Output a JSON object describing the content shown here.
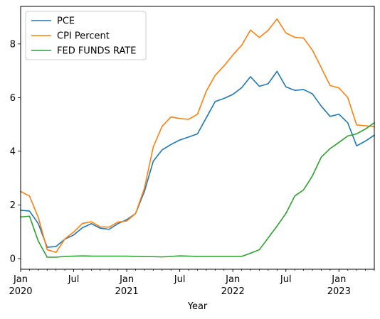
{
  "chart_data": {
    "type": "line",
    "title": "",
    "xlabel": "Year",
    "ylabel": "",
    "x": [
      "2020-01",
      "2020-02",
      "2020-03",
      "2020-04",
      "2020-05",
      "2020-06",
      "2020-07",
      "2020-08",
      "2020-09",
      "2020-10",
      "2020-11",
      "2020-12",
      "2021-01",
      "2021-02",
      "2021-03",
      "2021-04",
      "2021-05",
      "2021-06",
      "2021-07",
      "2021-08",
      "2021-09",
      "2021-10",
      "2021-11",
      "2021-12",
      "2022-01",
      "2022-02",
      "2022-03",
      "2022-04",
      "2022-05",
      "2022-06",
      "2022-07",
      "2022-08",
      "2022-09",
      "2022-10",
      "2022-11",
      "2022-12",
      "2023-01",
      "2023-02",
      "2023-03",
      "2023-04",
      "2023-05"
    ],
    "xlim": [
      "2020-01",
      "2023-05"
    ],
    "ylim": [
      -0.4,
      9.4
    ],
    "grid": false,
    "legend_position": "top-left",
    "x_ticks": [
      {
        "at": "2020-01",
        "label": "Jan",
        "sub": "2020"
      },
      {
        "at": "2020-07",
        "label": "Jul",
        "sub": ""
      },
      {
        "at": "2021-01",
        "label": "Jan",
        "sub": "2021"
      },
      {
        "at": "2021-07",
        "label": "Jul",
        "sub": ""
      },
      {
        "at": "2022-01",
        "label": "Jan",
        "sub": "2022"
      },
      {
        "at": "2022-07",
        "label": "Jul",
        "sub": ""
      },
      {
        "at": "2023-01",
        "label": "Jan",
        "sub": "2023"
      }
    ],
    "y_ticks": [
      0,
      2,
      4,
      6,
      8
    ],
    "series": [
      {
        "name": "PCE",
        "color": "#1f77b4",
        "values": [
          1.8,
          1.77,
          1.3,
          0.42,
          0.45,
          0.72,
          0.88,
          1.15,
          1.3,
          1.13,
          1.09,
          1.3,
          1.45,
          1.68,
          2.5,
          3.63,
          4.05,
          4.25,
          4.42,
          4.53,
          4.65,
          5.25,
          5.85,
          5.97,
          6.12,
          6.37,
          6.78,
          6.42,
          6.52,
          6.98,
          6.4,
          6.27,
          6.3,
          6.14,
          5.68,
          5.3,
          5.38,
          5.06,
          4.2,
          4.38,
          4.6
        ]
      },
      {
        "name": "CPI Percent",
        "color": "#ff7f0e",
        "values": [
          2.5,
          2.33,
          1.53,
          0.33,
          0.23,
          0.73,
          0.99,
          1.31,
          1.37,
          1.18,
          1.17,
          1.36,
          1.4,
          1.68,
          2.62,
          4.16,
          4.93,
          5.28,
          5.22,
          5.19,
          5.38,
          6.24,
          6.83,
          7.18,
          7.59,
          7.95,
          8.52,
          8.24,
          8.51,
          8.93,
          8.41,
          8.25,
          8.22,
          7.77,
          7.12,
          6.45,
          6.36,
          6.0,
          4.98,
          4.95,
          4.92
        ]
      },
      {
        "name": "FED FUNDS RATE",
        "color": "#2ca02c",
        "values": [
          1.55,
          1.58,
          0.65,
          0.05,
          0.05,
          0.08,
          0.09,
          0.1,
          0.09,
          0.09,
          0.09,
          0.09,
          0.09,
          0.08,
          0.07,
          0.07,
          0.06,
          0.08,
          0.1,
          0.09,
          0.08,
          0.08,
          0.08,
          0.08,
          0.08,
          0.08,
          0.2,
          0.33,
          0.77,
          1.21,
          1.68,
          2.33,
          2.56,
          3.08,
          3.78,
          4.1,
          4.33,
          4.57,
          4.65,
          4.83,
          5.06
        ]
      }
    ]
  }
}
